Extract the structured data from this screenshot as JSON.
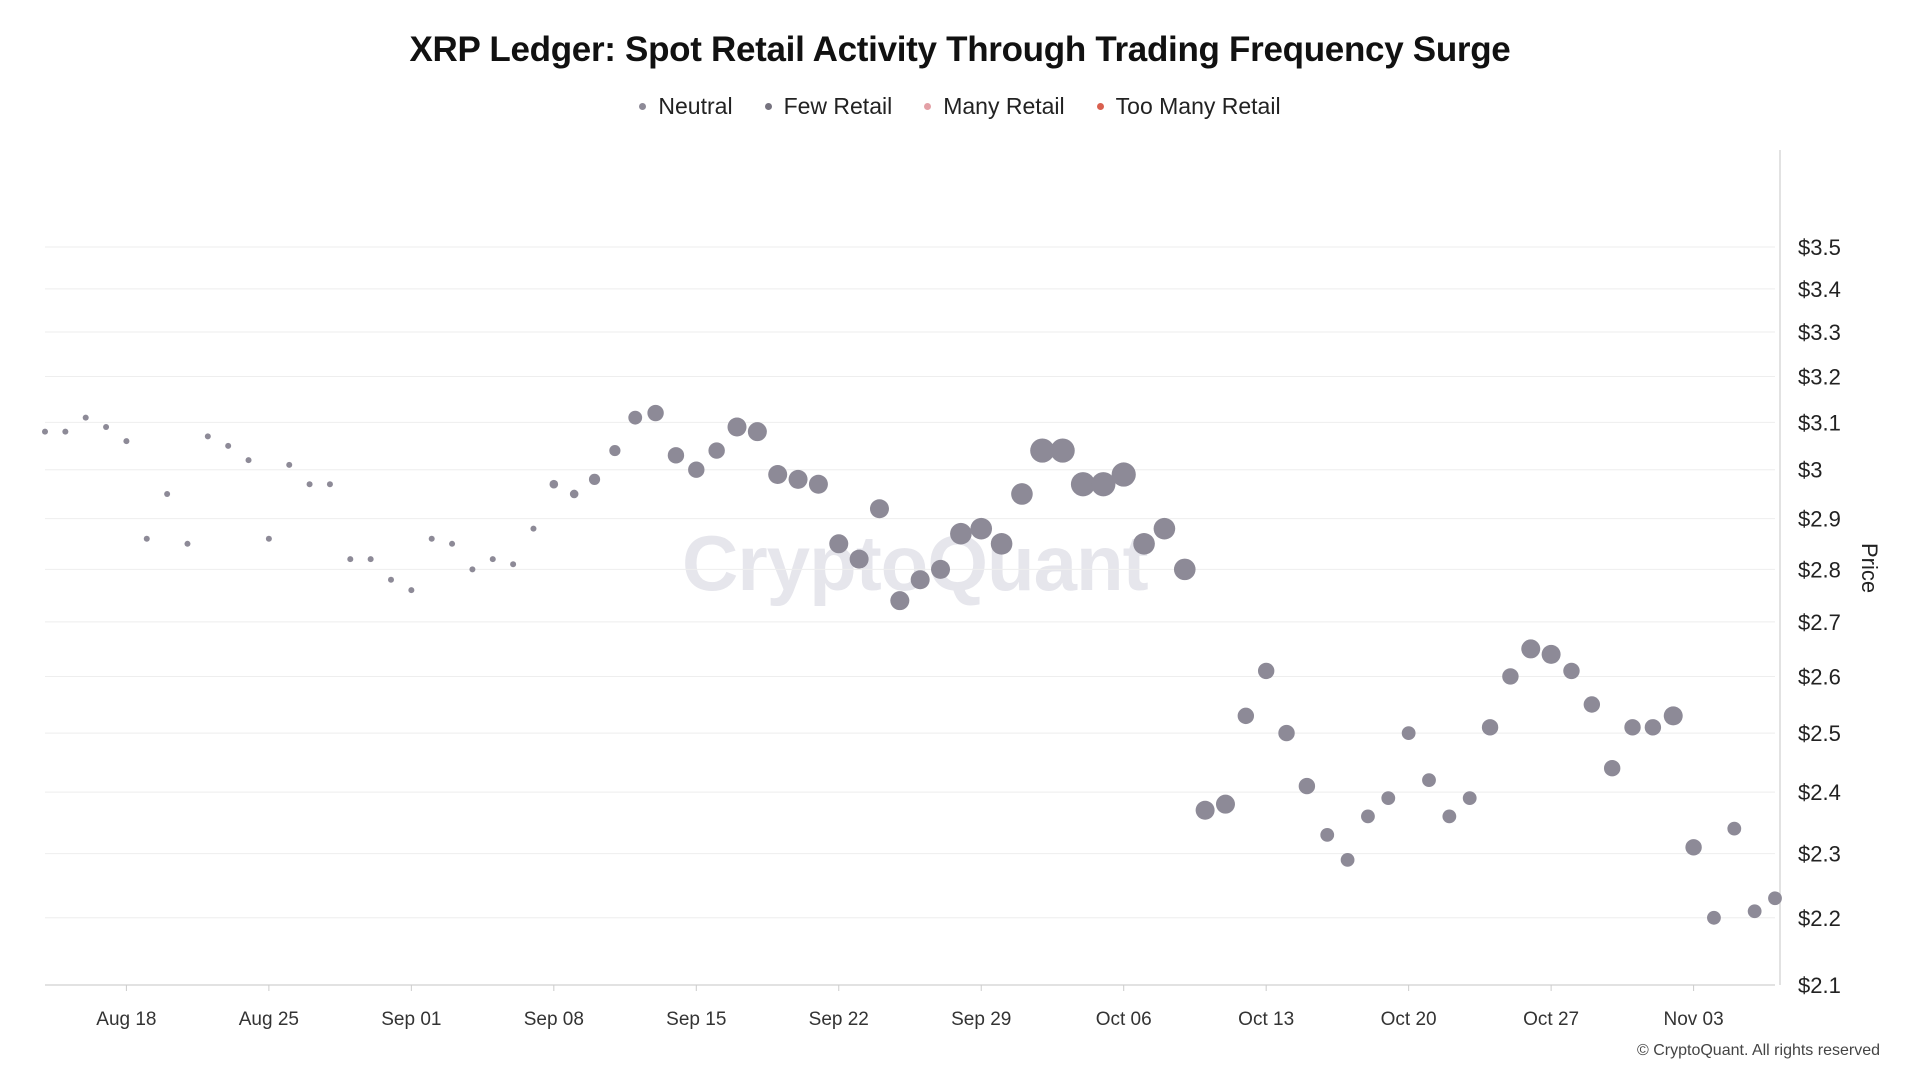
{
  "title": "XRP Ledger: Spot Retail Activity Through Trading Frequency Surge",
  "legend": [
    {
      "label": "Neutral",
      "color": "#8d8a97"
    },
    {
      "label": "Few Retail",
      "color": "#76737f"
    },
    {
      "label": "Many Retail",
      "color": "#e3a0a6"
    },
    {
      "label": "Too Many Retail",
      "color": "#d9604f"
    }
  ],
  "watermark": "CryptoQuant",
  "footer": "© CryptoQuant. All rights reserved",
  "chart_data": {
    "type": "scatter",
    "title": "XRP Ledger: Spot Retail Activity Through Trading Frequency Surge",
    "ylabel": "Price",
    "xlabel": "",
    "ylim": [
      2.1,
      3.55
    ],
    "y_scale": "log",
    "y_ticks": [
      "$2.1",
      "$2.2",
      "$2.3",
      "$2.4",
      "$2.5",
      "$2.6",
      "$2.7",
      "$2.8",
      "$2.9",
      "$3",
      "$3.1",
      "$3.2",
      "$3.3",
      "$3.4",
      "$3.5"
    ],
    "y_tick_values": [
      2.1,
      2.2,
      2.3,
      2.4,
      2.5,
      2.6,
      2.7,
      2.8,
      2.9,
      3.0,
      3.1,
      3.2,
      3.3,
      3.4,
      3.5
    ],
    "x_ticks": [
      "Aug 18",
      "Aug 25",
      "Sep 01",
      "Sep 08",
      "Sep 15",
      "Sep 22",
      "Sep 29",
      "Oct 06",
      "Oct 13",
      "Oct 20",
      "Oct 27",
      "Nov 03"
    ],
    "x_start": "2025-08-14",
    "x_end": "2025-11-07",
    "grid": true,
    "legend_position": "top-center",
    "categories": [
      "Neutral",
      "Few Retail",
      "Many Retail",
      "Too Many Retail"
    ],
    "series": [
      {
        "name": "Neutral",
        "color": "#8d8a97",
        "points": [
          {
            "x": "2025-08-14",
            "y": 3.08,
            "activity": 1
          },
          {
            "x": "2025-08-15",
            "y": 3.08,
            "activity": 1
          },
          {
            "x": "2025-08-16",
            "y": 3.11,
            "activity": 1
          },
          {
            "x": "2025-08-17",
            "y": 3.09,
            "activity": 1
          },
          {
            "x": "2025-08-18",
            "y": 3.06,
            "activity": 1
          },
          {
            "x": "2025-08-19",
            "y": 2.86,
            "activity": 1
          },
          {
            "x": "2025-08-20",
            "y": 2.95,
            "activity": 1
          },
          {
            "x": "2025-08-21",
            "y": 2.85,
            "activity": 1
          },
          {
            "x": "2025-08-22",
            "y": 3.07,
            "activity": 1
          },
          {
            "x": "2025-08-23",
            "y": 3.05,
            "activity": 1
          },
          {
            "x": "2025-08-24",
            "y": 3.02,
            "activity": 1
          },
          {
            "x": "2025-08-25",
            "y": 2.86,
            "activity": 1
          },
          {
            "x": "2025-08-26",
            "y": 3.01,
            "activity": 1
          },
          {
            "x": "2025-08-27",
            "y": 2.97,
            "activity": 1
          },
          {
            "x": "2025-08-28",
            "y": 2.97,
            "activity": 1
          },
          {
            "x": "2025-08-29",
            "y": 2.82,
            "activity": 1
          },
          {
            "x": "2025-08-30",
            "y": 2.82,
            "activity": 1
          },
          {
            "x": "2025-08-31",
            "y": 2.78,
            "activity": 1
          },
          {
            "x": "2025-09-01",
            "y": 2.76,
            "activity": 1
          },
          {
            "x": "2025-09-02",
            "y": 2.86,
            "activity": 1
          },
          {
            "x": "2025-09-03",
            "y": 2.85,
            "activity": 1
          },
          {
            "x": "2025-09-04",
            "y": 2.8,
            "activity": 1
          },
          {
            "x": "2025-09-05",
            "y": 2.82,
            "activity": 1
          },
          {
            "x": "2025-09-06",
            "y": 2.81,
            "activity": 1
          },
          {
            "x": "2025-09-07",
            "y": 2.88,
            "activity": 1
          },
          {
            "x": "2025-09-08",
            "y": 2.97,
            "activity": 2
          },
          {
            "x": "2025-09-09",
            "y": 2.95,
            "activity": 2
          },
          {
            "x": "2025-09-10",
            "y": 2.98,
            "activity": 3
          },
          {
            "x": "2025-09-11",
            "y": 3.04,
            "activity": 3
          },
          {
            "x": "2025-09-12",
            "y": 3.11,
            "activity": 4
          },
          {
            "x": "2025-09-13",
            "y": 3.12,
            "activity": 5
          },
          {
            "x": "2025-09-14",
            "y": 3.03,
            "activity": 5
          },
          {
            "x": "2025-09-15",
            "y": 3.0,
            "activity": 5
          },
          {
            "x": "2025-09-16",
            "y": 3.04,
            "activity": 5
          },
          {
            "x": "2025-09-17",
            "y": 3.09,
            "activity": 6
          },
          {
            "x": "2025-09-18",
            "y": 3.08,
            "activity": 6
          },
          {
            "x": "2025-09-19",
            "y": 2.99,
            "activity": 6
          },
          {
            "x": "2025-09-20",
            "y": 2.98,
            "activity": 6
          },
          {
            "x": "2025-09-21",
            "y": 2.97,
            "activity": 6
          },
          {
            "x": "2025-09-22",
            "y": 2.85,
            "activity": 6
          },
          {
            "x": "2025-09-23",
            "y": 2.82,
            "activity": 6
          },
          {
            "x": "2025-09-24",
            "y": 2.92,
            "activity": 6
          },
          {
            "x": "2025-09-25",
            "y": 2.74,
            "activity": 6
          },
          {
            "x": "2025-09-26",
            "y": 2.78,
            "activity": 6
          },
          {
            "x": "2025-09-27",
            "y": 2.8,
            "activity": 6
          },
          {
            "x": "2025-09-28",
            "y": 2.87,
            "activity": 7
          },
          {
            "x": "2025-09-29",
            "y": 2.88,
            "activity": 7
          },
          {
            "x": "2025-09-30",
            "y": 2.85,
            "activity": 7
          },
          {
            "x": "2025-10-01",
            "y": 2.95,
            "activity": 7
          },
          {
            "x": "2025-10-02",
            "y": 3.04,
            "activity": 8
          },
          {
            "x": "2025-10-03",
            "y": 3.04,
            "activity": 8
          },
          {
            "x": "2025-10-04",
            "y": 2.97,
            "activity": 8
          },
          {
            "x": "2025-10-05",
            "y": 2.97,
            "activity": 8
          },
          {
            "x": "2025-10-06",
            "y": 2.99,
            "activity": 8
          },
          {
            "x": "2025-10-07",
            "y": 2.85,
            "activity": 7
          },
          {
            "x": "2025-10-08",
            "y": 2.88,
            "activity": 7
          },
          {
            "x": "2025-10-09",
            "y": 2.8,
            "activity": 7
          },
          {
            "x": "2025-10-10",
            "y": 2.37,
            "activity": 6
          },
          {
            "x": "2025-10-11",
            "y": 2.38,
            "activity": 6
          },
          {
            "x": "2025-10-12",
            "y": 2.53,
            "activity": 5
          },
          {
            "x": "2025-10-13",
            "y": 2.61,
            "activity": 5
          },
          {
            "x": "2025-10-14",
            "y": 2.5,
            "activity": 5
          },
          {
            "x": "2025-10-15",
            "y": 2.41,
            "activity": 5
          },
          {
            "x": "2025-10-16",
            "y": 2.33,
            "activity": 4
          },
          {
            "x": "2025-10-17",
            "y": 2.29,
            "activity": 4
          },
          {
            "x": "2025-10-18",
            "y": 2.36,
            "activity": 4
          },
          {
            "x": "2025-10-19",
            "y": 2.39,
            "activity": 4
          },
          {
            "x": "2025-10-20",
            "y": 2.5,
            "activity": 4
          },
          {
            "x": "2025-10-21",
            "y": 2.42,
            "activity": 4
          },
          {
            "x": "2025-10-22",
            "y": 2.36,
            "activity": 4
          },
          {
            "x": "2025-10-23",
            "y": 2.39,
            "activity": 4
          },
          {
            "x": "2025-10-24",
            "y": 2.51,
            "activity": 5
          },
          {
            "x": "2025-10-25",
            "y": 2.6,
            "activity": 5
          },
          {
            "x": "2025-10-26",
            "y": 2.65,
            "activity": 6
          },
          {
            "x": "2025-10-27",
            "y": 2.64,
            "activity": 6
          },
          {
            "x": "2025-10-28",
            "y": 2.61,
            "activity": 5
          },
          {
            "x": "2025-10-29",
            "y": 2.55,
            "activity": 5
          },
          {
            "x": "2025-10-30",
            "y": 2.44,
            "activity": 5
          },
          {
            "x": "2025-10-31",
            "y": 2.51,
            "activity": 5
          },
          {
            "x": "2025-11-01",
            "y": 2.51,
            "activity": 5
          },
          {
            "x": "2025-11-02",
            "y": 2.53,
            "activity": 6
          },
          {
            "x": "2025-11-03",
            "y": 2.31,
            "activity": 5
          },
          {
            "x": "2025-11-04",
            "y": 2.2,
            "activity": 4
          },
          {
            "x": "2025-11-05",
            "y": 2.34,
            "activity": 4
          },
          {
            "x": "2025-11-06",
            "y": 2.21,
            "activity": 4
          },
          {
            "x": "2025-11-07",
            "y": 2.23,
            "activity": 4
          }
        ]
      }
    ]
  }
}
